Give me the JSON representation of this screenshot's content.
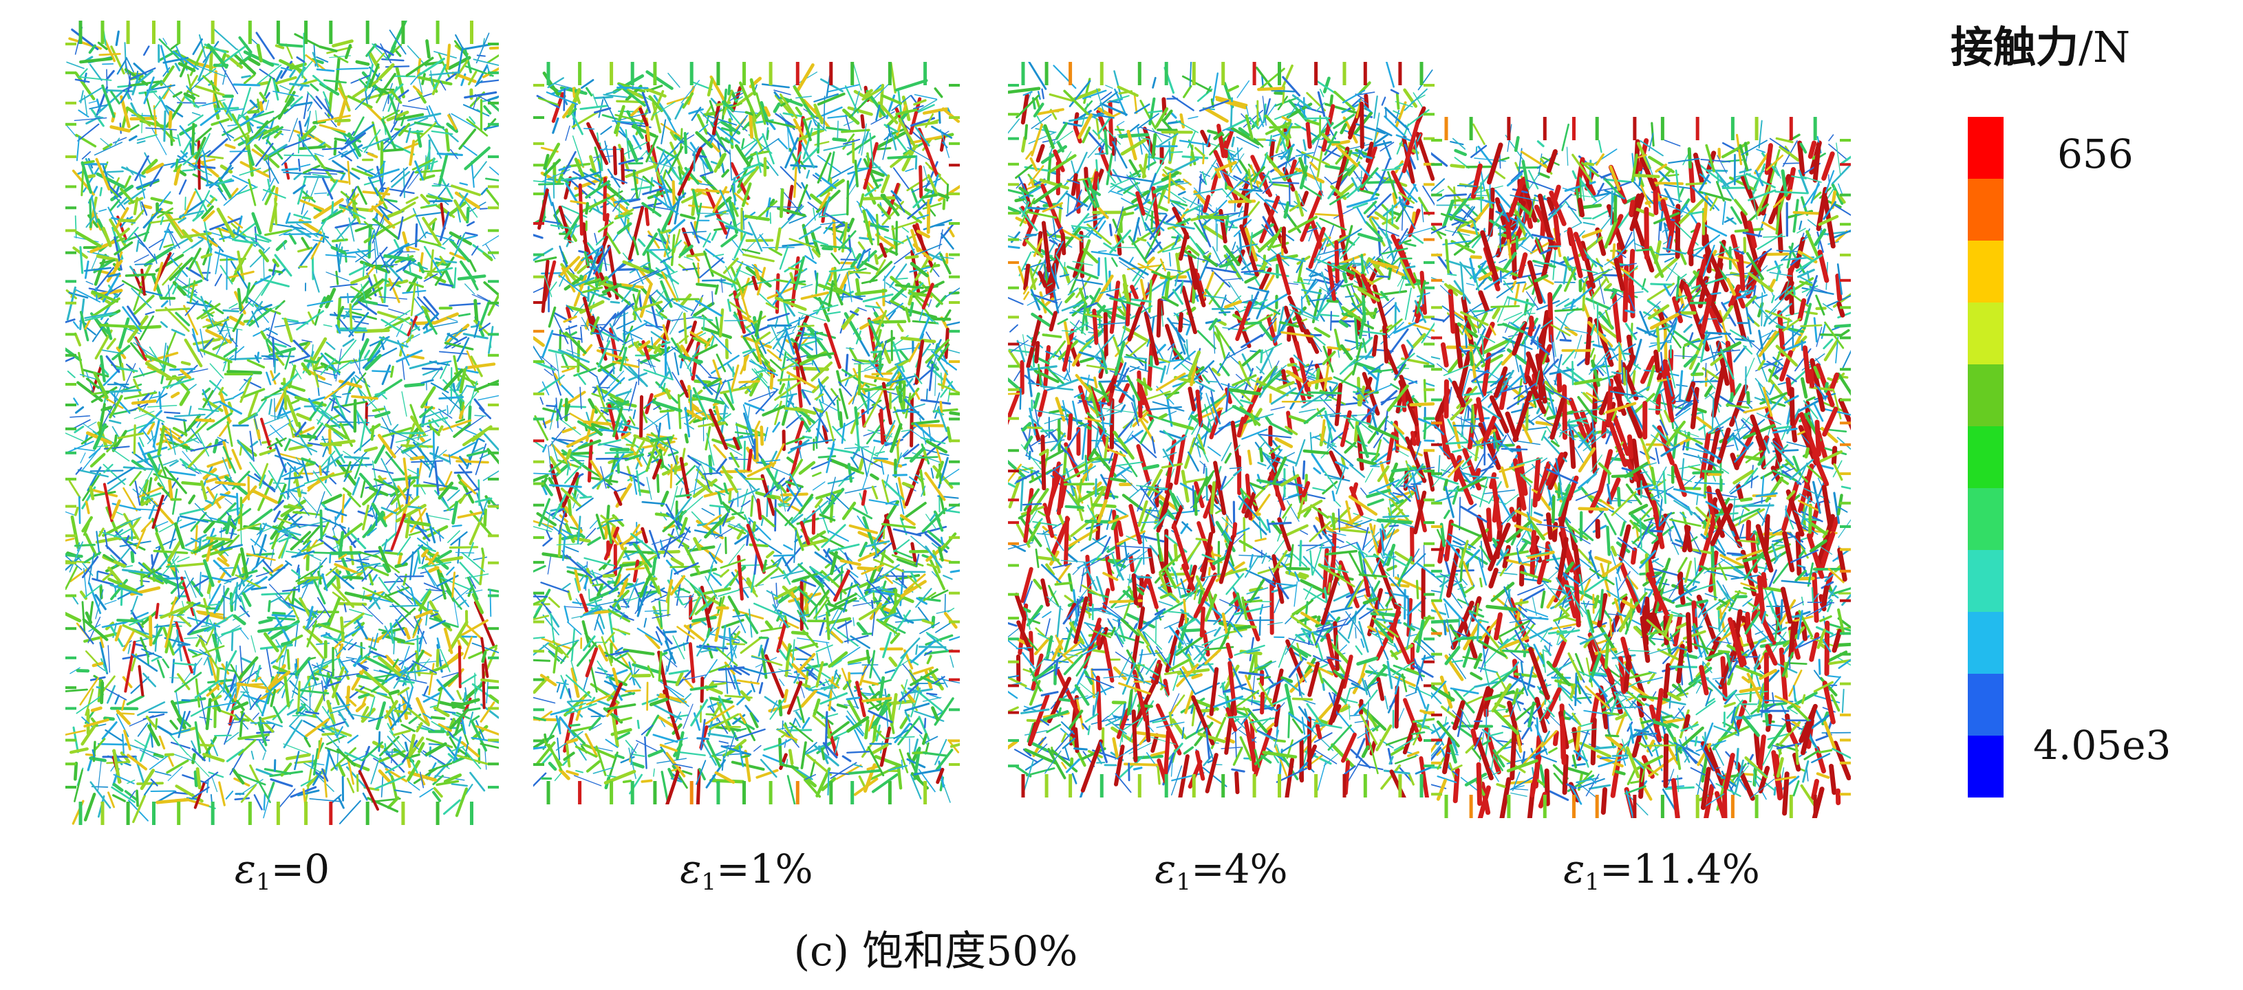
{
  "panels": [
    {
      "symbol": "ε",
      "subscript": "1",
      "value": "=0"
    },
    {
      "symbol": "ε",
      "subscript": "1",
      "value": "=1%"
    },
    {
      "symbol": "ε",
      "subscript": "1",
      "value": "=4%"
    },
    {
      "symbol": "ε",
      "subscript": "1",
      "value": "=11.4%"
    }
  ],
  "caption": "(c) 饱和度50%",
  "legend": {
    "title": "接触力",
    "unit": "/N",
    "max_label": "656",
    "min_label": "4.05e3",
    "colors": [
      "#ff0000",
      "#ff6600",
      "#ffcc00",
      "#ccee22",
      "#66cc22",
      "#22dd22",
      "#33dd66",
      "#33ddbb",
      "#22bbee",
      "#2266ee",
      "#0000ff"
    ]
  },
  "network_colors": {
    "cool": [
      "#2a6fd6",
      "#2fb6c9",
      "#35d3a8",
      "#24a9e0",
      "#1c8fd0"
    ],
    "mid": [
      "#3fbf3a",
      "#6fd22c",
      "#33c760",
      "#9ad629"
    ],
    "hot": [
      "#e6c21b",
      "#f08a10",
      "#d21c1c",
      "#b81212"
    ]
  }
}
